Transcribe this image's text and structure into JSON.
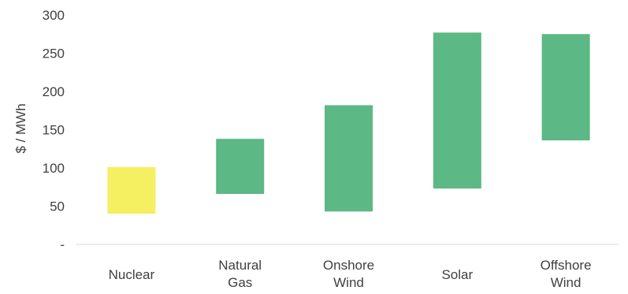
{
  "chart_data": {
    "type": "bar",
    "variant": "floating-range",
    "ylabel": "$ / MWh",
    "ylim": [
      0,
      300
    ],
    "yticks": [
      {
        "value": 0,
        "label": "-"
      },
      {
        "value": 50,
        "label": "50"
      },
      {
        "value": 100,
        "label": "100"
      },
      {
        "value": 150,
        "label": "150"
      },
      {
        "value": 200,
        "label": "200"
      },
      {
        "value": 250,
        "label": "250"
      },
      {
        "value": 300,
        "label": "300"
      }
    ],
    "grid": false,
    "categories": [
      {
        "label_lines": [
          "Nuclear"
        ],
        "low": 40,
        "high": 101,
        "color": "#f5ef62"
      },
      {
        "label_lines": [
          "Natural",
          "Gas"
        ],
        "low": 66,
        "high": 138,
        "color": "#5cb884"
      },
      {
        "label_lines": [
          "Onshore",
          "Wind"
        ],
        "low": 43,
        "high": 182,
        "color": "#5cb884"
      },
      {
        "label_lines": [
          "Solar"
        ],
        "low": 73,
        "high": 277,
        "color": "#5cb884"
      },
      {
        "label_lines": [
          "Offshore",
          "Wind"
        ],
        "low": 136,
        "high": 275,
        "color": "#5cb884"
      }
    ]
  }
}
